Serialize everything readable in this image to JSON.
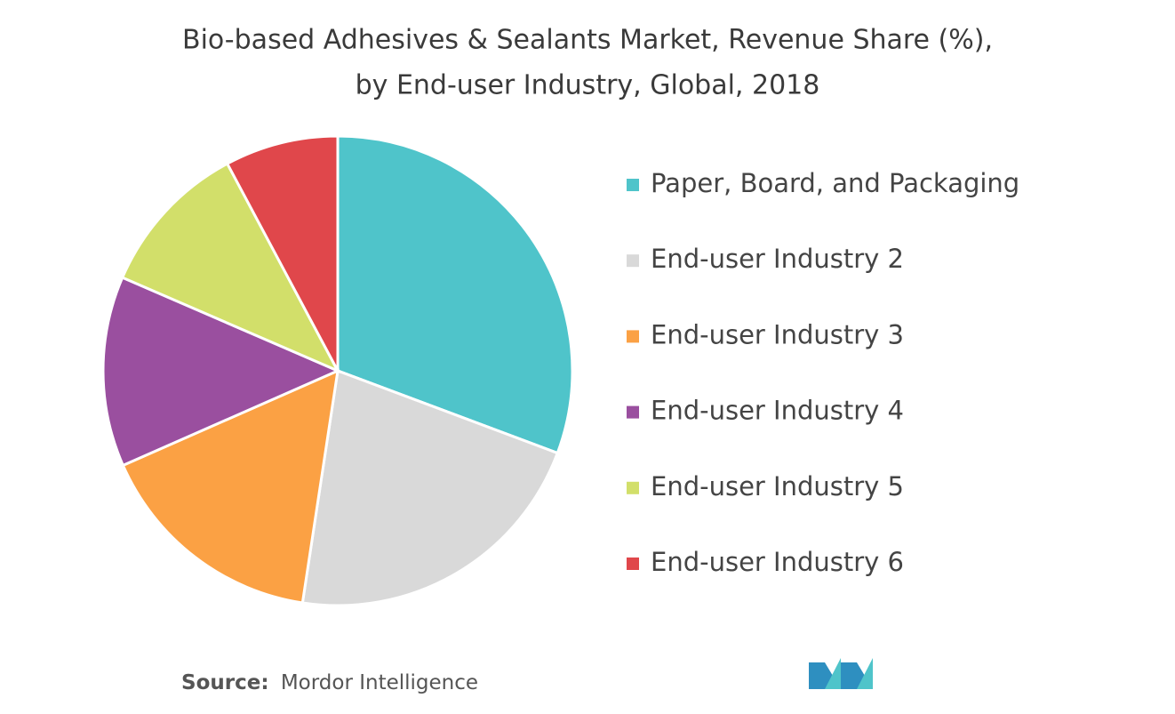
{
  "chart_data": {
    "type": "pie",
    "title": [
      "Bio-based Adhesives & Sealants Market, Revenue Share (%),",
      "by End-user Industry, Global, 2018"
    ],
    "categories": [
      "Paper, Board, and Packaging",
      "End-user Industry 2",
      "End-user Industry 3",
      "End-user Industry 4",
      "End-user Industry 5",
      "End-user Industry 6"
    ],
    "values": [
      30.7,
      21.7,
      16.0,
      13.1,
      10.7,
      7.8
    ],
    "colors": [
      "#4fc4ca",
      "#d9d9d9",
      "#fba144",
      "#9a4f9f",
      "#d2df6a",
      "#e0474b"
    ],
    "source_label": "Source:",
    "source": "Mordor Intelligence"
  }
}
